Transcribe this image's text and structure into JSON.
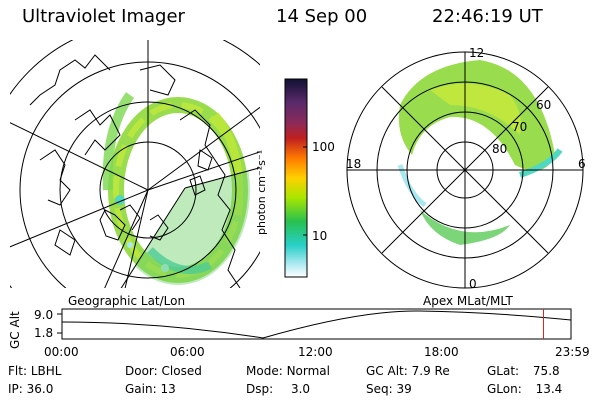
{
  "header": {
    "instrument": "Ultraviolet Imager",
    "date": "14 Sep 00",
    "time": "22:46:19 UT"
  },
  "colorbar": {
    "unit_label": "photon cm⁻²s⁻¹",
    "ticks": [
      "100",
      "10"
    ],
    "colors": [
      "#111133",
      "#5a2a6a",
      "#8a2a5a",
      "#c02020",
      "#ff7a00",
      "#ffd000",
      "#a8e600",
      "#28c050",
      "#28d0c8",
      "#a8e8f0",
      "#ffffff"
    ]
  },
  "left_map": {
    "caption": "Geographic Lat/Lon"
  },
  "right_map": {
    "caption": "Apex MLat/MLT",
    "mlt_labels": {
      "top": "12",
      "bottom": "0",
      "left": "18",
      "right": "6"
    },
    "lat_labels": [
      "60",
      "70",
      "80"
    ]
  },
  "timeline": {
    "ylabel": "GC Alt",
    "ytick_top": "9.0",
    "ytick_bottom": "1.8",
    "xticks": [
      "00:00",
      "06:00",
      "12:00",
      "18:00",
      "23:59"
    ],
    "current_fraction": 0.946,
    "marker_color": "#e02020"
  },
  "info": {
    "flt_label": "Flt:",
    "flt_value": "LBHL",
    "ip_label": "IP:",
    "ip_value": "36.0",
    "door_label": "Door:",
    "door_value": "Closed",
    "gain_label": "Gain:",
    "gain_value": "13",
    "mode_label": "Mode:",
    "mode_value": "Normal",
    "dsp_label": "Dsp:",
    "dsp_value": "3.0",
    "gcalt_label": "GC Alt:",
    "gcalt_value": "7.9 Re",
    "seq_label": "Seq:",
    "seq_value": "39",
    "glat_label": "GLat:",
    "glat_value": "75.8",
    "glon_label": "GLon:",
    "glon_value": "13.4"
  }
}
